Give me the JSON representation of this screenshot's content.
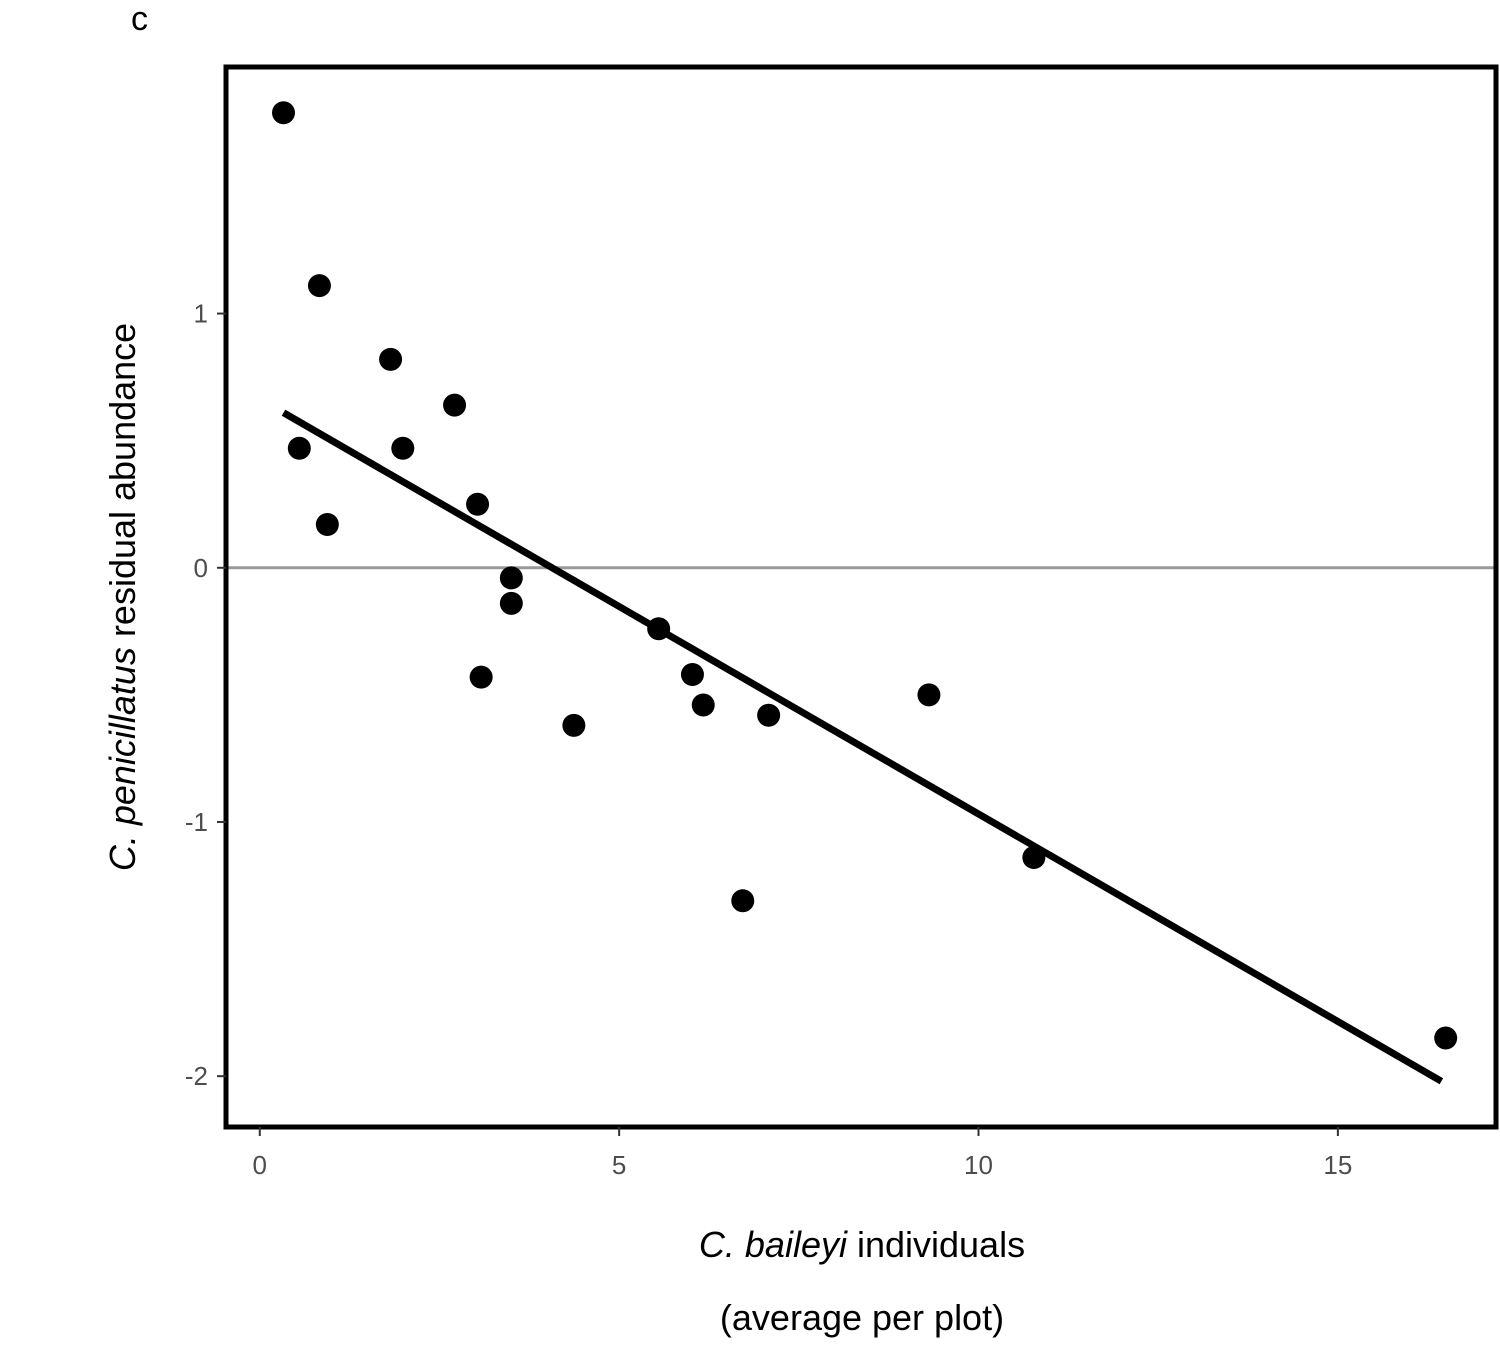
{
  "panel_label": "c",
  "chart_data": {
    "type": "scatter",
    "title": "",
    "xlabel": {
      "italic": "C. baileyi",
      "normal": " individuals",
      "line2": "(average per plot)"
    },
    "ylabel": {
      "italic": "C. penicillatus",
      "normal": " residual abundance"
    },
    "xlim": [
      -0.47,
      17.2
    ],
    "ylim": [
      -2.2,
      1.97
    ],
    "x_ticks": [
      0,
      5,
      10,
      15
    ],
    "x_tick_labels": [
      "0",
      "5",
      "10",
      "15"
    ],
    "y_ticks": [
      -2,
      -1,
      0,
      1
    ],
    "y_tick_labels": [
      "-2",
      "-1",
      "0",
      "1"
    ],
    "grid": false,
    "legend": "none",
    "reference_line": {
      "y": 0,
      "color": "#999999"
    },
    "fit_line": {
      "x": [
        0.33,
        16.44
      ],
      "y": [
        0.61,
        -2.02
      ],
      "color": "#000000"
    },
    "points": {
      "color": "#000000",
      "x": [
        0.33,
        0.83,
        1.82,
        2.71,
        0.55,
        1.99,
        3.03,
        0.94,
        3.5,
        3.5,
        3.08,
        4.37,
        5.55,
        6.02,
        6.17,
        7.08,
        6.72,
        9.31,
        10.77,
        16.5
      ],
      "y": [
        1.79,
        1.11,
        0.82,
        0.64,
        0.47,
        0.47,
        0.25,
        0.17,
        -0.04,
        -0.14,
        -0.43,
        -0.62,
        -0.24,
        -0.42,
        -0.54,
        -0.58,
        -1.31,
        -0.5,
        -1.14,
        -1.85
      ]
    }
  }
}
